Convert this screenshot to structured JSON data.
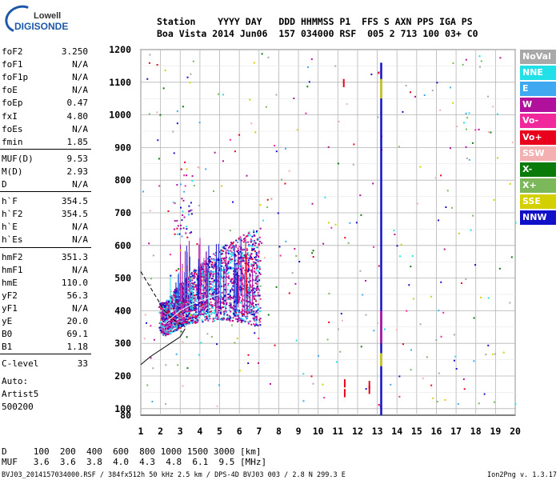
{
  "logo": {
    "word1": "Lowell",
    "word2": "DIGISONDE"
  },
  "header": {
    "line1": "Station    YYYY DAY   DDD HHMMSS P1  FFS S AXN PPS IGA PS",
    "line2": "Boa Vista 2014 Jun06  157 034000 RSF  005 2 713 100 03+ C0"
  },
  "params": [
    {
      "name": "foF2",
      "value": "3.250"
    },
    {
      "name": "foF1",
      "value": "N/A"
    },
    {
      "name": "foF1p",
      "value": "N/A"
    },
    {
      "name": "foE",
      "value": "N/A"
    },
    {
      "name": "foEp",
      "value": "0.47"
    },
    {
      "name": "fxI",
      "value": "4.80"
    },
    {
      "name": "foEs",
      "value": "N/A"
    },
    {
      "name": "fmin",
      "value": "1.85"
    },
    {
      "name": "MUF(D)",
      "value": "9.53"
    },
    {
      "name": "M(D)",
      "value": "2.93"
    },
    {
      "name": "D",
      "value": "N/A"
    },
    {
      "name": "h`F",
      "value": "354.5"
    },
    {
      "name": "h`F2",
      "value": "354.5"
    },
    {
      "name": "h`E",
      "value": "N/A"
    },
    {
      "name": "h`Es",
      "value": "N/A"
    },
    {
      "name": "hmF2",
      "value": "351.3"
    },
    {
      "name": "hmF1",
      "value": "N/A"
    },
    {
      "name": "hmE",
      "value": "110.0"
    },
    {
      "name": "yF2",
      "value": "56.3"
    },
    {
      "name": "yF1",
      "value": "N/A"
    },
    {
      "name": "yE",
      "value": "20.0"
    },
    {
      "name": "B0",
      "value": "69.1"
    },
    {
      "name": "B1",
      "value": "1.18"
    },
    {
      "name": "C-level",
      "value": "33"
    }
  ],
  "auto": {
    "line1": "Auto:",
    "line2": "Artist5",
    "line3": "500200"
  },
  "legend": [
    {
      "label": "NoVal",
      "color": "#a8a8a8"
    },
    {
      "label": "NNE",
      "color": "#22e0e8"
    },
    {
      "label": "E",
      "color": "#3fa8f0"
    },
    {
      "label": "W",
      "color": "#b0109c"
    },
    {
      "label": "Vo-",
      "color": "#f0289c"
    },
    {
      "label": "Vo+",
      "color": "#e8001c"
    },
    {
      "label": "SSW",
      "color": "#f4b0b0"
    },
    {
      "label": "X-",
      "color": "#0a7a0a"
    },
    {
      "label": "X+",
      "color": "#7ab85a"
    },
    {
      "label": "SSE",
      "color": "#d4d000"
    },
    {
      "label": "NNW",
      "color": "#1010c8"
    }
  ],
  "footer": {
    "line1": "D     100  200  400  600  800 1000 1500 3000 [km]",
    "line2": "MUF   3.6  3.6  3.8  4.0  4.3  4.8  6.1  9.5 [MHz]"
  },
  "statusline": "BVJ03_2014157034000.RSF / 384fx512h 50 kHz 2.5 km / DPS-4D BVJ03 003 / 2.8 N 299.3 E",
  "version": "Ion2Png v. 1.3.17",
  "chart_data": {
    "type": "scatter",
    "title": "",
    "xlabel": "",
    "ylabel": "",
    "xlim": [
      1,
      20
    ],
    "ylim": [
      80,
      1200
    ],
    "xticks": [
      1,
      2,
      3,
      4,
      5,
      6,
      7,
      8,
      9,
      10,
      11,
      12,
      13,
      14,
      15,
      16,
      17,
      18,
      19,
      20
    ],
    "yticks": [
      80,
      100,
      200,
      300,
      400,
      500,
      600,
      700,
      800,
      900,
      1000,
      1100,
      1200
    ],
    "grid": true,
    "legend_position": "right",
    "trace": {
      "description_series": "O-trace echo cloud",
      "points_freq_height_F": [
        [
          2.0,
          370
        ],
        [
          2.2,
          360
        ],
        [
          2.5,
          375
        ],
        [
          2.8,
          390
        ],
        [
          3.0,
          400
        ],
        [
          3.3,
          410
        ],
        [
          3.6,
          420
        ],
        [
          4.0,
          430
        ],
        [
          4.5,
          440
        ],
        [
          5.0,
          450
        ],
        [
          5.5,
          455
        ],
        [
          6.0,
          460
        ],
        [
          6.5,
          460
        ],
        [
          7.0,
          455
        ]
      ]
    },
    "profile_curve": [
      [
        1.0,
        235
      ],
      [
        1.5,
        260
      ],
      [
        2.0,
        280
      ],
      [
        2.5,
        300
      ],
      [
        3.0,
        320
      ],
      [
        3.25,
        345
      ]
    ],
    "dashed_curve": [
      [
        1.0,
        520
      ],
      [
        1.4,
        480
      ],
      [
        1.8,
        440
      ],
      [
        2.2,
        400
      ],
      [
        2.6,
        375
      ],
      [
        3.0,
        360
      ],
      [
        3.25,
        350
      ]
    ],
    "spike_at_13": {
      "x": 13.2,
      "yrange": [
        80,
        1170
      ]
    }
  }
}
